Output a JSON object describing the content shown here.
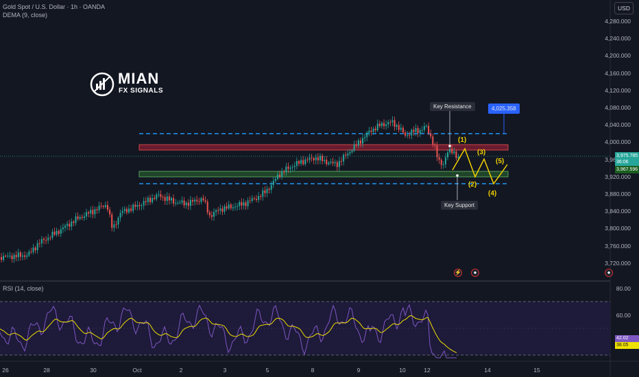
{
  "header": {
    "symbol_line": "Gold Spot / U.S. Dollar · 1h · OANDA",
    "indicator_line": "DEMA (9, close)",
    "rsi_label": "RSI (14, close)"
  },
  "currency_button": "USD",
  "logo": {
    "brand": "MIAN",
    "sub": "FX SIGNALS"
  },
  "price_axis": {
    "ticks": [
      "4,280.000",
      "4,240.000",
      "4,200.000",
      "4,160.000",
      "4,120.000",
      "4,080.000",
      "4,040.000",
      "4,000.000",
      "3,960.000",
      "3,920.000",
      "3,880.000",
      "3,840.000",
      "3,800.000",
      "3,760.000",
      "3,720.000"
    ],
    "current_price": "3,975.785",
    "countdown": "36:06",
    "dema_value": "3,967.596",
    "colors": {
      "current": "#26a69a",
      "dema": "#26a69a"
    }
  },
  "rsi_axis": {
    "ticks": [
      "80.00",
      "60.00"
    ],
    "rsi_value": "42.02",
    "ma_value": "38.05",
    "colors": {
      "rsi": "#7e57c2",
      "ma": "#f0e100"
    }
  },
  "time_axis": {
    "ticks": [
      "26",
      "28",
      "30",
      "Oct",
      "2",
      "3",
      "5",
      "8",
      "9",
      "10",
      "12",
      "14",
      "15"
    ]
  },
  "annotations": {
    "key_resistance": "Key Resistance",
    "key_support": "Key Support",
    "target_price": "4,025.358",
    "waves": [
      "(1)",
      "(2)",
      "(3)",
      "(4)",
      "(5)"
    ]
  },
  "colors": {
    "background": "#131722",
    "up_candle": "#26a69a",
    "down_candle": "#ef5350",
    "resistance_zone": "#b2203a",
    "support_zone": "#4caf50",
    "dashed_line": "#2196f3",
    "wave_line": "#f0d000",
    "target_box": "#2962ff"
  },
  "chart_data": {
    "type": "candlestick",
    "title": "Gold Spot / U.S. Dollar · 1h · OANDA",
    "x": [
      "26",
      "28",
      "30",
      "Oct",
      "2",
      "3",
      "5",
      "8",
      "9",
      "10",
      "12",
      "14",
      "15"
    ],
    "ylim": [
      3700,
      4300
    ],
    "series": [
      {
        "name": "DEMA (9, close)",
        "approx_path_values": [
          3750,
          3752,
          3760,
          3790,
          3830,
          3860,
          3880,
          3870,
          3890,
          3865,
          3860,
          3875,
          3880,
          3900,
          3930,
          3960,
          3970,
          3990,
          4020,
          4050,
          4040,
          4030,
          4000,
          3975
        ]
      }
    ],
    "levels": {
      "resistance_zone": [
        3990,
        4000
      ],
      "support_zone": [
        3935,
        3945
      ],
      "upper_dashed": 4025,
      "lower_dashed": 3917
    },
    "rsi": {
      "name": "RSI (14, close)",
      "ylim": [
        20,
        90
      ],
      "levels": [
        70,
        30
      ],
      "current": 42.02,
      "ma": 38.05
    }
  }
}
